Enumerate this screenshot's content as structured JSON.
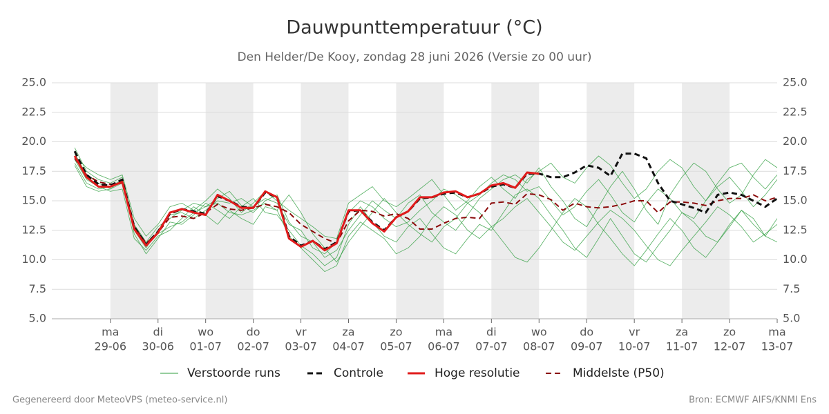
{
  "chart_data": {
    "type": "line",
    "title": "Dauwpunttemperatuur (°C)",
    "subtitle": "Den Helder/De Kooy, zondag 28 juni 2026 (Versie zo 00 uur)",
    "footer_left": "Gegenereerd door MeteoVPS (meteo-service.nl)",
    "footer_right": "Bron: ECMWF AIFS/KNMI Ens",
    "xlim": [
      -1.23,
      14
    ],
    "ylim": [
      5,
      25
    ],
    "yticks": [
      {
        "value": 5,
        "label": "5.0"
      },
      {
        "value": 7.5,
        "label": "7.5"
      },
      {
        "value": 10,
        "label": "10.0"
      },
      {
        "value": 12.5,
        "label": "12.5"
      },
      {
        "value": 15,
        "label": "15.0"
      },
      {
        "value": 17.5,
        "label": "17.5"
      },
      {
        "value": 20,
        "label": "20.0"
      },
      {
        "value": 22.5,
        "label": "22.5"
      },
      {
        "value": 25,
        "label": "25.0"
      }
    ],
    "xticks": [
      {
        "value": 0,
        "weekday": "ma",
        "date": "29-06"
      },
      {
        "value": 1,
        "weekday": "di",
        "date": "30-06"
      },
      {
        "value": 2,
        "weekday": "wo",
        "date": "01-07"
      },
      {
        "value": 3,
        "weekday": "do",
        "date": "02-07"
      },
      {
        "value": 4,
        "weekday": "vr",
        "date": "03-07"
      },
      {
        "value": 5,
        "weekday": "za",
        "date": "04-07"
      },
      {
        "value": 6,
        "weekday": "zo",
        "date": "05-07"
      },
      {
        "value": 7,
        "weekday": "ma",
        "date": "06-07"
      },
      {
        "value": 8,
        "weekday": "di",
        "date": "07-07"
      },
      {
        "value": 9,
        "weekday": "wo",
        "date": "08-07"
      },
      {
        "value": 10,
        "weekday": "do",
        "date": "09-07"
      },
      {
        "value": 11,
        "weekday": "vr",
        "date": "10-07"
      },
      {
        "value": 12,
        "weekday": "za",
        "date": "11-07"
      },
      {
        "value": 13,
        "weekday": "zo",
        "date": "12-07"
      },
      {
        "value": 14,
        "weekday": "ma",
        "date": "13-07"
      }
    ],
    "shaded_days": [
      0,
      2,
      4,
      6,
      8,
      10,
      12
    ],
    "shade_color": "#ececec",
    "grid": true,
    "x": [
      -0.75,
      -0.5,
      -0.25,
      0,
      0.25,
      0.5,
      0.75,
      1,
      1.25,
      1.5,
      1.75,
      2,
      2.25,
      2.5,
      2.75,
      3,
      3.25,
      3.5,
      3.75,
      4,
      4.25,
      4.5,
      4.75,
      5,
      5.25,
      5.5,
      5.75,
      6,
      6.25,
      6.5,
      6.75,
      7,
      7.25,
      7.5,
      7.75,
      8,
      8.25,
      8.5,
      8.75,
      9,
      9.25,
      9.5,
      9.75,
      10,
      10.25,
      10.5,
      10.75,
      11,
      11.25,
      11.5,
      11.75,
      12,
      12.25,
      12.5,
      12.75,
      13,
      13.25,
      13.5,
      13.75,
      14
    ],
    "ensemble": {
      "name": "Verstoorde runs",
      "color": "#2e9e3e",
      "members": [
        [
          19.5,
          17.5,
          16.8,
          16.5,
          17.0,
          13.0,
          11.5,
          12.8,
          13.5,
          14.2,
          14.8,
          14.5,
          15.2,
          15.8,
          14.6,
          14.0,
          15.0,
          15.5,
          13.2,
          12.0,
          11.5,
          10.2,
          10.8,
          12.5,
          13.8,
          15.0,
          14.2,
          13.5,
          14.8,
          15.5,
          14.0,
          13.2,
          12.5,
          13.8,
          15.2,
          16.0,
          16.8,
          17.2,
          16.5,
          17.8,
          16.2,
          15.0,
          13.5,
          12.8,
          14.5,
          16.2,
          17.5,
          16.0,
          14.2,
          13.0,
          15.5,
          17.0,
          18.2,
          17.5,
          16.0,
          14.8,
          15.5,
          17.2,
          18.5,
          17.8
        ],
        [
          18.2,
          16.5,
          16.0,
          16.2,
          16.8,
          12.2,
          10.5,
          11.8,
          13.2,
          13.0,
          13.8,
          14.8,
          14.2,
          13.5,
          14.5,
          15.2,
          14.0,
          13.8,
          12.5,
          11.2,
          10.5,
          9.5,
          10.2,
          13.0,
          14.5,
          13.2,
          12.0,
          11.5,
          12.8,
          13.5,
          12.2,
          11.0,
          10.5,
          11.8,
          13.0,
          12.5,
          14.0,
          15.5,
          16.0,
          15.2,
          13.8,
          12.5,
          11.0,
          10.2,
          11.8,
          13.5,
          12.0,
          10.5,
          9.8,
          11.2,
          12.5,
          14.0,
          13.2,
          12.0,
          11.5,
          12.8,
          14.2,
          13.5,
          12.0,
          11.5
        ],
        [
          18.8,
          17.8,
          17.2,
          16.8,
          17.2,
          13.5,
          12.0,
          13.0,
          14.5,
          14.8,
          14.2,
          15.0,
          16.0,
          15.2,
          14.0,
          14.8,
          15.8,
          15.0,
          14.2,
          13.5,
          12.8,
          12.0,
          11.8,
          14.8,
          15.5,
          16.2,
          15.0,
          14.5,
          15.2,
          16.0,
          16.8,
          15.5,
          14.2,
          15.0,
          16.2,
          17.0,
          16.0,
          15.2,
          16.8,
          17.5,
          18.2,
          17.0,
          16.5,
          17.8,
          18.8,
          18.0,
          16.5,
          15.2,
          16.0,
          17.5,
          18.5,
          17.8,
          16.2,
          15.0,
          16.5,
          17.8,
          18.2,
          17.0,
          16.0,
          17.2
        ],
        [
          18.5,
          16.8,
          16.2,
          15.8,
          16.0,
          11.8,
          10.8,
          12.0,
          12.5,
          13.5,
          14.5,
          13.8,
          13.0,
          14.2,
          13.5,
          13.0,
          14.5,
          14.2,
          15.5,
          14.0,
          12.2,
          11.0,
          9.8,
          11.5,
          12.8,
          14.0,
          15.2,
          14.0,
          13.0,
          12.2,
          11.5,
          12.8,
          13.5,
          14.8,
          14.0,
          12.8,
          11.5,
          10.2,
          9.8,
          11.0,
          12.5,
          14.0,
          15.2,
          14.5,
          13.0,
          11.8,
          10.5,
          9.5,
          10.8,
          12.2,
          13.5,
          12.5,
          11.0,
          10.2,
          11.5,
          13.0,
          14.2,
          13.0,
          12.0,
          13.5
        ],
        [
          19.0,
          17.2,
          16.5,
          16.0,
          16.5,
          12.5,
          11.0,
          12.5,
          13.8,
          14.0,
          13.5,
          14.2,
          15.0,
          14.8,
          15.2,
          14.5,
          15.2,
          14.8,
          13.0,
          12.5,
          11.0,
          10.5,
          11.5,
          14.0,
          15.0,
          14.5,
          13.5,
          12.8,
          13.2,
          14.2,
          15.0,
          16.0,
          15.5,
          14.8,
          15.5,
          16.5,
          17.2,
          16.8,
          15.8,
          16.2,
          15.0,
          13.8,
          14.5,
          15.8,
          16.8,
          15.5,
          14.0,
          13.2,
          14.8,
          16.0,
          15.2,
          14.0,
          13.5,
          15.0,
          16.2,
          17.0,
          15.8,
          14.5,
          15.5,
          16.8
        ],
        [
          18.0,
          16.2,
          15.8,
          16.0,
          16.8,
          12.8,
          11.2,
          12.2,
          12.8,
          13.2,
          14.0,
          14.5,
          14.8,
          14.0,
          13.8,
          14.2,
          14.8,
          14.2,
          12.0,
          11.0,
          10.0,
          9.0,
          9.5,
          12.0,
          13.2,
          12.5,
          11.8,
          10.5,
          11.0,
          12.0,
          13.5,
          14.5,
          13.8,
          12.5,
          11.8,
          12.8,
          13.5,
          14.5,
          15.2,
          14.0,
          12.8,
          11.5,
          10.8,
          12.0,
          13.2,
          14.2,
          13.5,
          12.5,
          11.2,
          10.0,
          9.5,
          10.8,
          12.0,
          13.2,
          14.5,
          13.8,
          12.8,
          11.5,
          12.2,
          13.0
        ]
      ]
    },
    "series": [
      {
        "name": "Controle",
        "color": "#111111",
        "dash": true,
        "width": 3,
        "values": [
          19.2,
          17.2,
          16.4,
          16.3,
          16.8,
          12.8,
          11.3,
          12.4,
          13.9,
          14.3,
          14.1,
          13.9,
          15.4,
          15.0,
          14.5,
          14.4,
          15.7,
          15.3,
          12.0,
          11.2,
          11.6,
          10.9,
          11.5,
          14.1,
          14.2,
          13.2,
          12.5,
          13.6,
          14.1,
          15.2,
          15.3,
          15.6,
          15.7,
          15.3,
          15.6,
          16.2,
          16.4,
          16.1,
          17.3,
          17.3,
          17.0,
          17.0,
          17.4,
          18.0,
          17.8,
          17.1,
          19.0,
          19.0,
          18.6,
          16.5,
          15.0,
          14.7,
          14.4,
          14.0,
          15.5,
          15.7,
          15.5,
          15.0,
          14.5,
          15.2
        ]
      },
      {
        "name": "Hoge resolutie",
        "color": "#e01b1b",
        "dash": false,
        "width": 3,
        "values": [
          18.8,
          17.0,
          16.2,
          16.2,
          16.6,
          12.6,
          11.2,
          12.3,
          14.0,
          14.3,
          14.0,
          13.8,
          15.5,
          15.0,
          14.4,
          14.4,
          15.8,
          15.3,
          11.8,
          11.1,
          11.6,
          10.8,
          11.4,
          14.2,
          14.2,
          13.1,
          12.4,
          13.6,
          14.1,
          15.3,
          15.3,
          15.7,
          15.8,
          15.3,
          15.6,
          16.3,
          16.5,
          16.1,
          17.4,
          17.3,
          null,
          null,
          null,
          null,
          null,
          null,
          null,
          null,
          null,
          null,
          null,
          null,
          null,
          null,
          null,
          null,
          null,
          null,
          null,
          null
        ]
      },
      {
        "name": "Middelste (P50)",
        "color": "#8b0a0a",
        "dash": true,
        "width": 2,
        "values": [
          18.6,
          17.2,
          16.6,
          16.4,
          16.5,
          12.8,
          11.4,
          12.3,
          13.6,
          13.7,
          13.5,
          14.0,
          14.7,
          14.3,
          14.2,
          14.4,
          14.7,
          14.5,
          14.0,
          13.0,
          12.4,
          11.8,
          11.4,
          13.3,
          14.2,
          14.1,
          13.7,
          13.9,
          13.5,
          12.6,
          12.6,
          13.1,
          13.5,
          13.6,
          13.5,
          14.8,
          14.9,
          14.7,
          15.6,
          15.5,
          15.1,
          14.2,
          14.8,
          14.5,
          14.4,
          14.5,
          14.7,
          15.0,
          15.0,
          14.0,
          14.9,
          14.9,
          14.8,
          14.6,
          15.0,
          15.2,
          15.2,
          15.5,
          15.0,
          15.3
        ]
      }
    ]
  }
}
